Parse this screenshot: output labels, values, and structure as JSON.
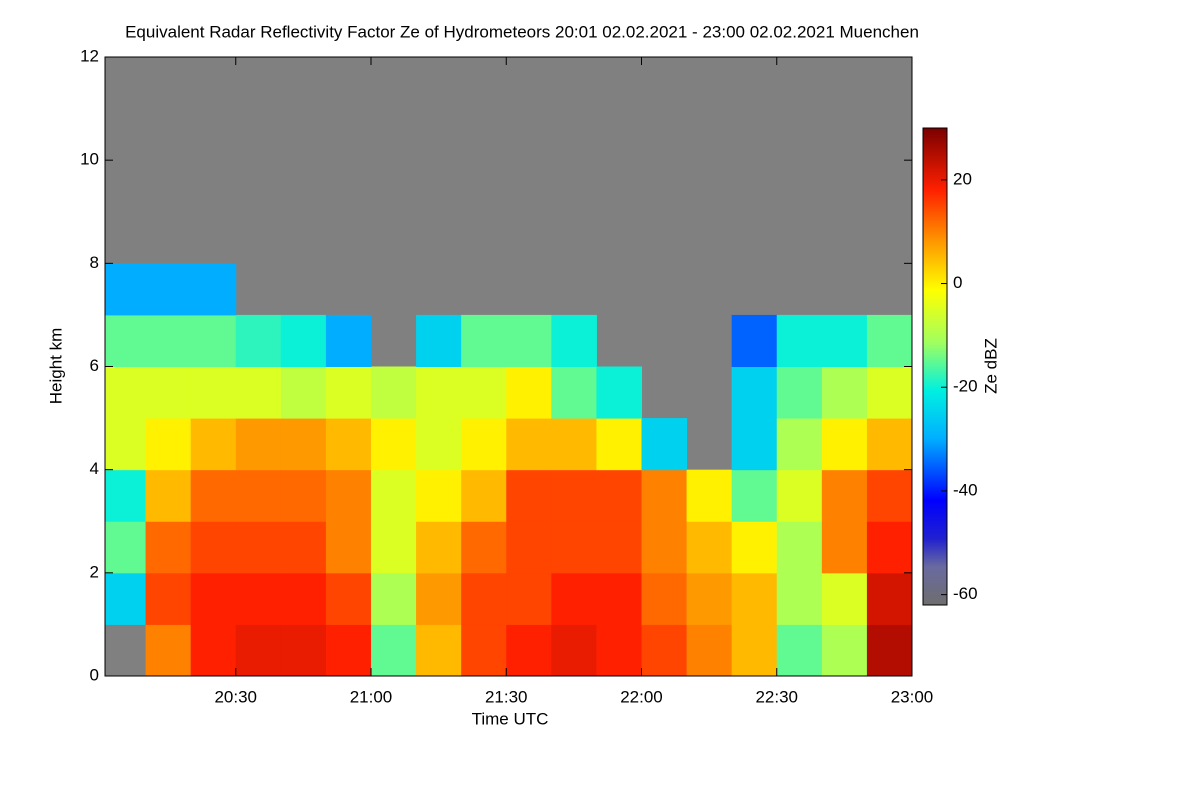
{
  "chart_data": {
    "type": "heatmap",
    "title": "Equivalent Radar Reflectivity Factor Ze of Hydrometeors   20:01 02.02.2021 - 23:00 02.02.2021 Muenchen",
    "x_label": "Time UTC",
    "y_label": "Height km",
    "colorbar_label": "Ze dBZ",
    "xlim": [
      "20:01",
      "23:00"
    ],
    "xticks": [
      "20:30",
      "21:00",
      "21:30",
      "22:00",
      "22:30",
      "23:00"
    ],
    "ylim": [
      0,
      12
    ],
    "yticks": [
      0,
      2,
      4,
      6,
      8,
      10,
      12
    ],
    "clim": [
      -62,
      30
    ],
    "cticks": [
      -60,
      -40,
      -20,
      0,
      20
    ],
    "background_color": "#808080",
    "x": [
      "20:05",
      "20:15",
      "20:25",
      "20:35",
      "20:45",
      "20:55",
      "21:05",
      "21:15",
      "21:25",
      "21:35",
      "21:45",
      "21:55",
      "22:05",
      "22:15",
      "22:25",
      "22:35",
      "22:45",
      "22:55"
    ],
    "y": [
      0.5,
      1.5,
      2.5,
      3.5,
      4.5,
      5.5,
      6.5,
      7.5,
      8.5,
      9.5,
      10.5,
      11.5
    ],
    "z": [
      [
        null,
        10,
        18,
        20,
        20,
        18,
        -15,
        5,
        15,
        18,
        20,
        18,
        15,
        10,
        5,
        -15,
        -10,
        25
      ],
      [
        -25,
        15,
        18,
        18,
        18,
        15,
        -10,
        8,
        15,
        15,
        18,
        18,
        12,
        8,
        5,
        -10,
        -5,
        22
      ],
      [
        -15,
        12,
        15,
        15,
        15,
        10,
        -5,
        5,
        12,
        15,
        15,
        15,
        10,
        5,
        0,
        -10,
        10,
        18
      ],
      [
        -20,
        5,
        12,
        12,
        12,
        10,
        -5,
        0,
        5,
        15,
        15,
        15,
        10,
        0,
        -15,
        -5,
        10,
        15
      ],
      [
        -5,
        0,
        5,
        8,
        8,
        5,
        0,
        -5,
        0,
        5,
        5,
        0,
        -25,
        null,
        -25,
        -10,
        0,
        5
      ],
      [
        -5,
        -5,
        -5,
        -5,
        -8,
        -5,
        -8,
        -5,
        -5,
        0,
        -15,
        -20,
        null,
        null,
        -25,
        -15,
        -10,
        -5
      ],
      [
        -15,
        -15,
        -15,
        -18,
        -20,
        -30,
        null,
        -25,
        -15,
        -15,
        -20,
        null,
        null,
        null,
        -35,
        -20,
        -20,
        -15
      ],
      [
        -30,
        -30,
        -30,
        null,
        null,
        null,
        null,
        null,
        null,
        null,
        null,
        null,
        null,
        null,
        null,
        null,
        null,
        null
      ],
      [
        null,
        null,
        null,
        null,
        null,
        null,
        null,
        null,
        null,
        null,
        null,
        null,
        null,
        null,
        null,
        null,
        null,
        null
      ],
      [
        null,
        null,
        null,
        null,
        null,
        null,
        null,
        null,
        null,
        null,
        null,
        null,
        null,
        null,
        null,
        null,
        null,
        null
      ],
      [
        null,
        null,
        null,
        null,
        null,
        null,
        null,
        null,
        null,
        null,
        null,
        null,
        null,
        null,
        null,
        null,
        null,
        null
      ],
      [
        null,
        null,
        null,
        null,
        null,
        null,
        null,
        null,
        null,
        null,
        null,
        null,
        null,
        null,
        null,
        null,
        null,
        null
      ]
    ]
  }
}
